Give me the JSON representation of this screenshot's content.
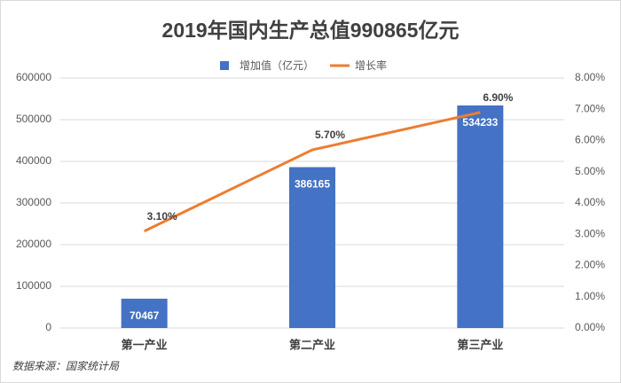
{
  "chart_data": {
    "type": "combo",
    "title": "2019年国内生产总值990865亿元",
    "categories": [
      "第一产业",
      "第二产业",
      "第三产业"
    ],
    "series": [
      {
        "name": "增加值（亿元）",
        "type": "bar",
        "color": "#4472c4",
        "values": [
          70467,
          386165,
          534233
        ]
      },
      {
        "name": "增长率",
        "type": "line",
        "axis": "y2",
        "color": "#ed7d31",
        "values": [
          3.1,
          5.7,
          6.9
        ],
        "value_labels": [
          "3.10%",
          "5.70%",
          "6.90%"
        ]
      }
    ],
    "ylim": [
      0,
      600000
    ],
    "yticks": [
      0,
      100000,
      200000,
      300000,
      400000,
      500000,
      600000
    ],
    "y2lim": [
      0,
      8
    ],
    "y2ticks": [
      {
        "value": 0,
        "label": "0.00%"
      },
      {
        "value": 1,
        "label": "1.00%"
      },
      {
        "value": 2,
        "label": "2.00%"
      },
      {
        "value": 3,
        "label": "3.00%"
      },
      {
        "value": 4,
        "label": "4.00%"
      },
      {
        "value": 5,
        "label": "5.00%"
      },
      {
        "value": 6,
        "label": "6.00%"
      },
      {
        "value": 7,
        "label": "7.00%"
      },
      {
        "value": 8,
        "label": "8.00%"
      }
    ],
    "grid": true,
    "legend": "top",
    "source": "数据来源：国家统计局"
  }
}
